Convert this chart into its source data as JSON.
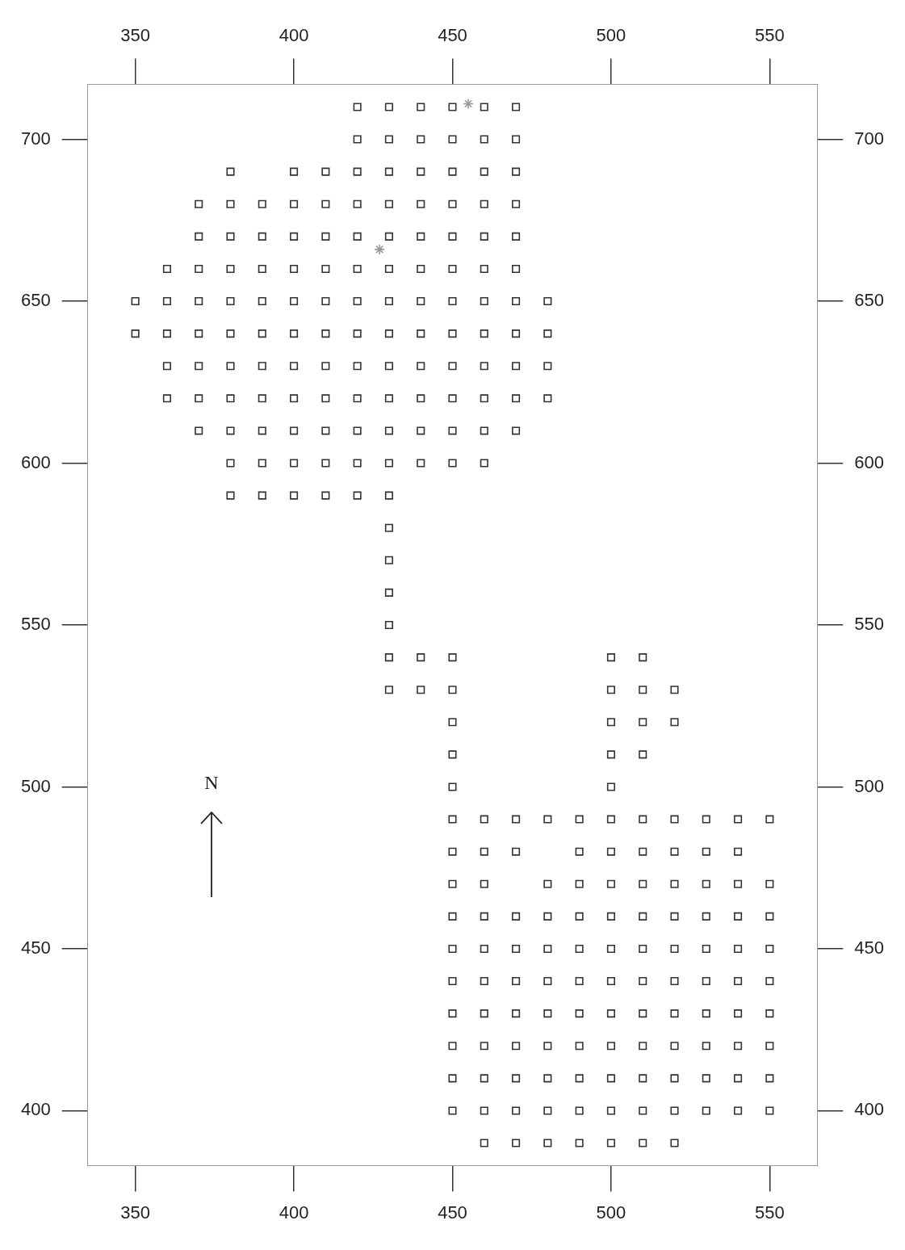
{
  "chart_data": {
    "type": "scatter",
    "xlim": [
      335,
      565
    ],
    "xticks": [
      350,
      400,
      450,
      500,
      550
    ],
    "x2lim": [
      335,
      565
    ],
    "x2ticks": [
      350,
      400,
      450,
      500,
      550
    ],
    "ylim": [
      383,
      717
    ],
    "yticks": [
      400,
      450,
      500,
      550,
      600,
      650,
      700
    ],
    "y2lim": [
      383,
      717
    ],
    "y2ticks": [
      400,
      450,
      500,
      550,
      600,
      650,
      700
    ],
    "annotations": [
      "N"
    ],
    "series": [
      {
        "color": "#333333",
        "marker": "square",
        "x": [
          420,
          430,
          440,
          450,
          460,
          470,
          420,
          430,
          440,
          450,
          460,
          470,
          380,
          400,
          410,
          420,
          430,
          440,
          450,
          460,
          470,
          370,
          380,
          390,
          400,
          410,
          420,
          430,
          440,
          450,
          460,
          470,
          370,
          380,
          390,
          400,
          410,
          420,
          430,
          440,
          450,
          460,
          470,
          360,
          370,
          380,
          390,
          400,
          410,
          420,
          430,
          440,
          450,
          460,
          470,
          350,
          360,
          370,
          380,
          390,
          400,
          410,
          420,
          430,
          440,
          450,
          460,
          470,
          480,
          350,
          360,
          370,
          380,
          390,
          400,
          410,
          420,
          430,
          440,
          450,
          460,
          470,
          480,
          360,
          370,
          380,
          390,
          400,
          410,
          420,
          430,
          440,
          450,
          460,
          470,
          480,
          360,
          370,
          380,
          390,
          400,
          410,
          420,
          430,
          440,
          450,
          460,
          470,
          480,
          370,
          380,
          390,
          400,
          410,
          420,
          430,
          440,
          450,
          460,
          470,
          380,
          390,
          400,
          410,
          420,
          430,
          440,
          450,
          460,
          380,
          390,
          400,
          410,
          420,
          430,
          430,
          430,
          430,
          430,
          430,
          440,
          450,
          500,
          510,
          430,
          440,
          450,
          500,
          510,
          520,
          450,
          500,
          510,
          520,
          450,
          500,
          510,
          450,
          500,
          450,
          460,
          470,
          480,
          490,
          500,
          510,
          520,
          530,
          540,
          550,
          450,
          460,
          470,
          490,
          500,
          510,
          520,
          530,
          540,
          450,
          460,
          480,
          490,
          500,
          510,
          520,
          530,
          540,
          550,
          450,
          460,
          470,
          480,
          490,
          500,
          510,
          520,
          530,
          540,
          550,
          450,
          460,
          470,
          480,
          490,
          500,
          510,
          520,
          530,
          540,
          550,
          450,
          460,
          470,
          480,
          490,
          500,
          510,
          520,
          530,
          540,
          550,
          450,
          460,
          470,
          480,
          490,
          500,
          510,
          520,
          530,
          540,
          550,
          450,
          460,
          470,
          480,
          490,
          500,
          510,
          520,
          530,
          540,
          550,
          450,
          460,
          470,
          480,
          490,
          500,
          510,
          520,
          530,
          540,
          550,
          450,
          460,
          470,
          480,
          490,
          500,
          510,
          520,
          530,
          540,
          550,
          460,
          470,
          480,
          490,
          500,
          510,
          520
        ],
        "values": [
          710,
          710,
          710,
          710,
          710,
          710,
          700,
          700,
          700,
          700,
          700,
          700,
          690,
          690,
          690,
          690,
          690,
          690,
          690,
          690,
          690,
          680,
          680,
          680,
          680,
          680,
          680,
          680,
          680,
          680,
          680,
          680,
          670,
          670,
          670,
          670,
          670,
          670,
          670,
          670,
          670,
          670,
          670,
          660,
          660,
          660,
          660,
          660,
          660,
          660,
          660,
          660,
          660,
          660,
          660,
          650,
          650,
          650,
          650,
          650,
          650,
          650,
          650,
          650,
          650,
          650,
          650,
          650,
          650,
          640,
          640,
          640,
          640,
          640,
          640,
          640,
          640,
          640,
          640,
          640,
          640,
          640,
          640,
          630,
          630,
          630,
          630,
          630,
          630,
          630,
          630,
          630,
          630,
          630,
          630,
          630,
          620,
          620,
          620,
          620,
          620,
          620,
          620,
          620,
          620,
          620,
          620,
          620,
          620,
          610,
          610,
          610,
          610,
          610,
          610,
          610,
          610,
          610,
          610,
          610,
          600,
          600,
          600,
          600,
          600,
          600,
          600,
          600,
          600,
          590,
          590,
          590,
          590,
          590,
          590,
          580,
          570,
          560,
          550,
          540,
          540,
          540,
          540,
          540,
          530,
          530,
          530,
          530,
          530,
          530,
          520,
          520,
          520,
          520,
          510,
          510,
          510,
          500,
          500,
          490,
          490,
          490,
          490,
          490,
          490,
          490,
          490,
          490,
          490,
          490,
          480,
          480,
          480,
          480,
          480,
          480,
          480,
          480,
          480,
          470,
          470,
          470,
          470,
          470,
          470,
          470,
          470,
          470,
          470,
          460,
          460,
          460,
          460,
          460,
          460,
          460,
          460,
          460,
          460,
          460,
          450,
          450,
          450,
          450,
          450,
          450,
          450,
          450,
          450,
          450,
          450,
          440,
          440,
          440,
          440,
          440,
          440,
          440,
          440,
          440,
          440,
          440,
          430,
          430,
          430,
          430,
          430,
          430,
          430,
          430,
          430,
          430,
          430,
          420,
          420,
          420,
          420,
          420,
          420,
          420,
          420,
          420,
          420,
          420,
          410,
          410,
          410,
          410,
          410,
          410,
          410,
          410,
          410,
          410,
          410,
          400,
          400,
          400,
          400,
          400,
          400,
          400,
          400,
          400,
          400,
          400,
          390,
          390,
          390,
          390,
          390,
          390,
          390
        ]
      },
      {
        "color": "#999999",
        "marker": "cross",
        "x": [
          455,
          427
        ],
        "values": [
          711,
          666
        ]
      }
    ]
  }
}
